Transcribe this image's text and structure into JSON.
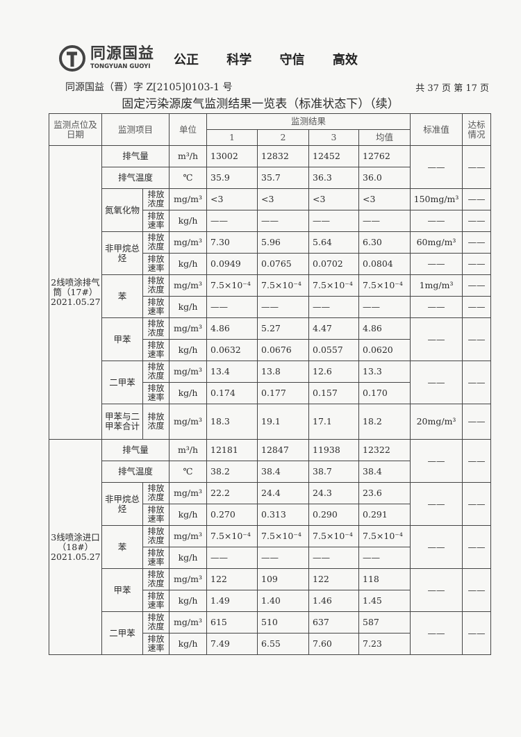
{
  "header": {
    "logo_cn": "同源国益",
    "logo_en": "TONGYUAN GUOYI",
    "slogan": [
      "公正",
      "科学",
      "守信",
      "高效"
    ],
    "doc_number": "同源国益（晋）字 Z[2105]0103-1 号",
    "page_info": "共 37 页  第 17 页"
  },
  "title": "固定污染源废气监测结果一览表（标准状态下）（续）",
  "table": {
    "headers": {
      "site": "监测点位及日期",
      "item": "监测项目",
      "unit": "单位",
      "results": "监测结果",
      "runs": [
        "1",
        "2",
        "3",
        "均值"
      ],
      "standard": "标准值",
      "compliance": "达标情况"
    },
    "sites": [
      {
        "name": "2线喷涂排气筒（17#）2021.05.27",
        "rows": [
          {
            "item": "排气量",
            "unit": "m³/h",
            "values": [
              "13002",
              "12832",
              "12452",
              "12762"
            ],
            "std": "——",
            "ok": "——"
          },
          {
            "item": "排气温度",
            "unit": "℃",
            "values": [
              "35.9",
              "35.7",
              "36.3",
              "36.0"
            ]
          },
          {
            "item": "氮氧化物",
            "sub": "排放浓度",
            "unit": "mg/m³",
            "values": [
              "<3",
              "<3",
              "<3",
              "<3"
            ],
            "std": "150mg/m³",
            "ok": "——"
          },
          {
            "sub": "排放速率",
            "unit": "kg/h",
            "values": [
              "——",
              "——",
              "——",
              "——"
            ],
            "std": "——",
            "ok": "——"
          },
          {
            "item": "非甲烷总烃",
            "sub": "排放浓度",
            "unit": "mg/m³",
            "values": [
              "7.30",
              "5.96",
              "5.64",
              "6.30"
            ],
            "std": "60mg/m³",
            "ok": "——"
          },
          {
            "sub": "排放速率",
            "unit": "kg/h",
            "values": [
              "0.0949",
              "0.0765",
              "0.0702",
              "0.0804"
            ],
            "std": "——",
            "ok": "——"
          },
          {
            "item": "苯",
            "sub": "排放浓度",
            "unit": "mg/m³",
            "values": [
              "7.5×10⁻⁴",
              "7.5×10⁻⁴",
              "7.5×10⁻⁴",
              "7.5×10⁻⁴"
            ],
            "std": "1mg/m³",
            "ok": "——"
          },
          {
            "sub": "排放速率",
            "unit": "kg/h",
            "values": [
              "——",
              "——",
              "——",
              "——"
            ],
            "std": "——",
            "ok": "——"
          },
          {
            "item": "甲苯",
            "sub": "排放浓度",
            "unit": "mg/m³",
            "values": [
              "4.86",
              "5.27",
              "4.47",
              "4.86"
            ],
            "std": "——",
            "ok": "——"
          },
          {
            "sub": "排放速率",
            "unit": "kg/h",
            "values": [
              "0.0632",
              "0.0676",
              "0.0557",
              "0.0620"
            ]
          },
          {
            "item": "二甲苯",
            "sub": "排放浓度",
            "unit": "mg/m³",
            "values": [
              "13.4",
              "13.8",
              "12.6",
              "13.3"
            ],
            "std": "——",
            "ok": "——"
          },
          {
            "sub": "排放速率",
            "unit": "kg/h",
            "values": [
              "0.174",
              "0.177",
              "0.157",
              "0.170"
            ]
          },
          {
            "item": "甲苯与二甲苯合计",
            "sub": "排放浓度",
            "unit": "mg/m³",
            "values": [
              "18.3",
              "19.1",
              "17.1",
              "18.2"
            ],
            "std": "20mg/m³",
            "ok": "——",
            "tall": true
          }
        ]
      },
      {
        "name": "3线喷涂进口（18#）2021.05.27",
        "rows": [
          {
            "item": "排气量",
            "unit": "m³/h",
            "values": [
              "12181",
              "12847",
              "11938",
              "12322"
            ],
            "std": "——",
            "ok": "——"
          },
          {
            "item": "排气温度",
            "unit": "℃",
            "values": [
              "38.2",
              "38.4",
              "38.7",
              "38.4"
            ]
          },
          {
            "item": "非甲烷总烃",
            "sub": "排放浓度",
            "unit": "mg/m³",
            "values": [
              "22.2",
              "24.4",
              "24.3",
              "23.6"
            ],
            "std": "——",
            "ok": "——"
          },
          {
            "sub": "排放速率",
            "unit": "kg/h",
            "values": [
              "0.270",
              "0.313",
              "0.290",
              "0.291"
            ]
          },
          {
            "item": "苯",
            "sub": "排放浓度",
            "unit": "mg/m³",
            "values": [
              "7.5×10⁻⁴",
              "7.5×10⁻⁴",
              "7.5×10⁻⁴",
              "7.5×10⁻⁴"
            ],
            "std": "——",
            "ok": "——"
          },
          {
            "sub": "排放速率",
            "unit": "kg/h",
            "values": [
              "——",
              "——",
              "——",
              "——"
            ]
          },
          {
            "item": "甲苯",
            "sub": "排放浓度",
            "unit": "mg/m³",
            "values": [
              "122",
              "109",
              "122",
              "118"
            ],
            "std": "——",
            "ok": "——"
          },
          {
            "sub": "排放速率",
            "unit": "kg/h",
            "values": [
              "1.49",
              "1.40",
              "1.46",
              "1.45"
            ]
          },
          {
            "item": "二甲苯",
            "sub": "排放浓度",
            "unit": "mg/m³",
            "values": [
              "615",
              "510",
              "637",
              "587"
            ],
            "std": "——",
            "ok": "——"
          },
          {
            "sub": "排放速率",
            "unit": "kg/h",
            "values": [
              "7.49",
              "6.55",
              "7.60",
              "7.23"
            ]
          }
        ]
      }
    ]
  }
}
